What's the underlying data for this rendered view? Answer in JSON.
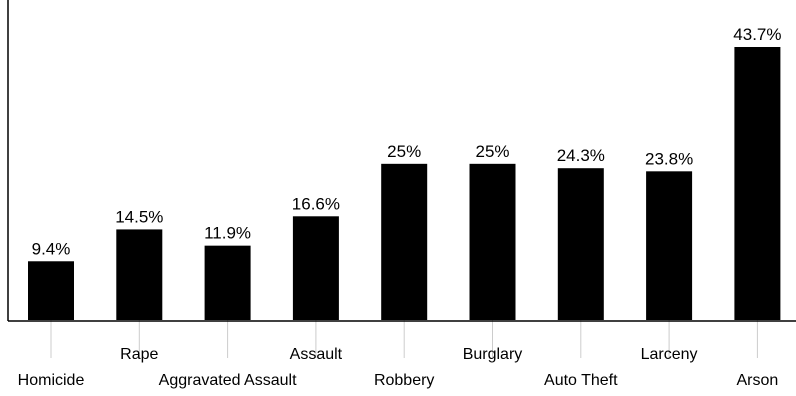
{
  "chart_data": {
    "type": "bar",
    "categories": [
      "Homicide",
      "Rape",
      "Aggravated Assault",
      "Assault",
      "Robbery",
      "Burglary",
      "Auto Theft",
      "Larceny",
      "Arson"
    ],
    "values": [
      9.4,
      14.5,
      11.9,
      16.6,
      25,
      25,
      24.3,
      23.8,
      43.7
    ],
    "data_labels": [
      "9.4%",
      "14.5%",
      "11.9%",
      "16.6%",
      "25%",
      "25%",
      "24.3%",
      "23.8%",
      "43.7%"
    ],
    "title": "",
    "xlabel": "",
    "ylabel": "",
    "ylim": [
      0,
      43.7
    ],
    "grid": false,
    "legend": "none",
    "bar_color": "#000000",
    "axis_color": "#000000",
    "tick_color": "#cccccc"
  }
}
